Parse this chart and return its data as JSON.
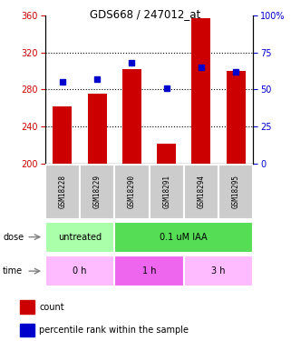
{
  "title": "GDS668 / 247012_at",
  "samples": [
    "GSM18228",
    "GSM18229",
    "GSM18290",
    "GSM18291",
    "GSM18294",
    "GSM18295"
  ],
  "bar_values": [
    262,
    276,
    302,
    222,
    357,
    300
  ],
  "bar_bottom": 200,
  "blue_percentiles": [
    55,
    57,
    68,
    51,
    65,
    62
  ],
  "ylim_left": [
    200,
    360
  ],
  "ylim_right": [
    0,
    100
  ],
  "yticks_left": [
    200,
    240,
    280,
    320,
    360
  ],
  "yticks_right": [
    0,
    25,
    50,
    75,
    100
  ],
  "bar_color": "#cc0000",
  "blue_color": "#0000cc",
  "dose_groups": [
    {
      "label": "untreated",
      "start": 0,
      "end": 2,
      "color": "#aaffaa"
    },
    {
      "label": "0.1 uM IAA",
      "start": 2,
      "end": 6,
      "color": "#55dd55"
    }
  ],
  "time_groups": [
    {
      "label": "0 h",
      "start": 0,
      "end": 2,
      "color": "#ffbbff"
    },
    {
      "label": "1 h",
      "start": 2,
      "end": 4,
      "color": "#ee66ee"
    },
    {
      "label": "3 h",
      "start": 4,
      "end": 6,
      "color": "#ffbbff"
    }
  ],
  "sample_bg_color": "#cccccc",
  "legend_red_label": "count",
  "legend_blue_label": "percentile rank within the sample",
  "dose_label": "dose",
  "time_label": "time",
  "left_axis_color": "#cc0000",
  "right_axis_color": "#0000cc",
  "fig_width": 3.21,
  "fig_height": 3.75,
  "dpi": 100
}
